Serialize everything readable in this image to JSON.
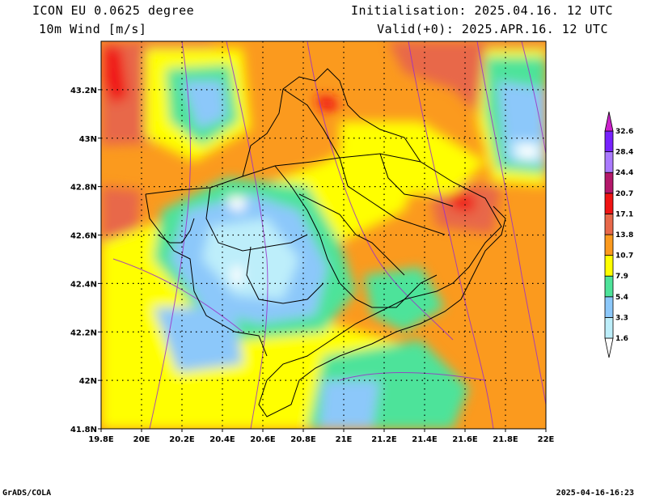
{
  "header": {
    "model": "ICON EU 0.0625 degree",
    "field": "10m Wind [m/s]",
    "init": "Initialisation: 2025.04.16. 12 UTC",
    "valid": "Valid(+0): 2025.APR.16. 12 UTC"
  },
  "footer": {
    "credit": "GrADS/COLA",
    "timestamp": "2025-04-16-16:23"
  },
  "map": {
    "lon_range": [
      19.8,
      22.0
    ],
    "lat_range": [
      41.8,
      43.4
    ],
    "x_ticks": [
      "19.8E",
      "20E",
      "20.2E",
      "20.4E",
      "20.6E",
      "20.8E",
      "21E",
      "21.2E",
      "21.4E",
      "21.6E",
      "21.8E",
      "22E"
    ],
    "y_ticks": [
      "41.8N",
      "42N",
      "42.2N",
      "42.4N",
      "42.6N",
      "42.8N",
      "43N",
      "43.2N"
    ],
    "grid": "dotted",
    "overlays": [
      "wind speed shading",
      "borders",
      "streamlines"
    ]
  },
  "colorbar": {
    "levels": [
      "1.6",
      "3.3",
      "5.4",
      "7.9",
      "10.7",
      "13.8",
      "17.1",
      "20.7",
      "24.4",
      "28.4",
      "32.6"
    ],
    "colors": [
      "#ffffff",
      "#bdeefa",
      "#8cc8fa",
      "#4ee39a",
      "#ffff00",
      "#fb9a1e",
      "#e8684a",
      "#f01414",
      "#b4186a",
      "#aa7aff",
      "#7722ff",
      "#cc22cc"
    ]
  }
}
